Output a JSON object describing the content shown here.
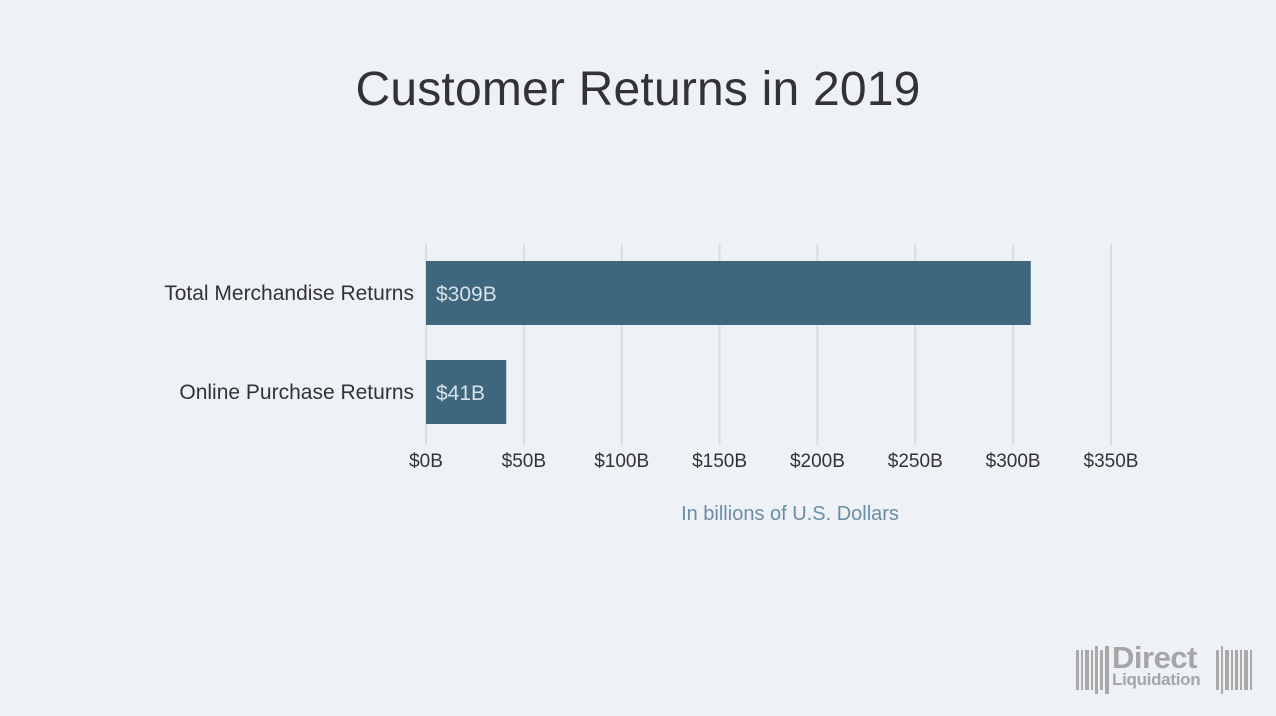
{
  "chart_data": {
    "type": "bar",
    "orientation": "horizontal",
    "title": "Customer Returns in 2019",
    "xlabel": "In billions of U.S. Dollars",
    "ylabel": "",
    "categories": [
      "Total Merchandise Returns",
      "Online Purchase Returns"
    ],
    "values": [
      309,
      41
    ],
    "data_labels": [
      "$309B",
      "$41B"
    ],
    "xlim": [
      0,
      350
    ],
    "xticks": [
      0,
      50,
      100,
      150,
      200,
      250,
      300,
      350
    ],
    "xtick_labels": [
      "$0B",
      "$50B",
      "$100B",
      "$150B",
      "$200B",
      "$250B",
      "$300B",
      "$350B"
    ],
    "grid": true,
    "legend": "none",
    "colors": {
      "bar": "#3e667d",
      "bar_label": "#d6e1ea",
      "grid": "#d9dde2",
      "text": "#333333",
      "axis_title": "#6b8ca4",
      "background": "#eef2f6"
    }
  },
  "logo": {
    "line1": "Direct",
    "line2": "Liquidation",
    "color": "#a6a6a6"
  }
}
